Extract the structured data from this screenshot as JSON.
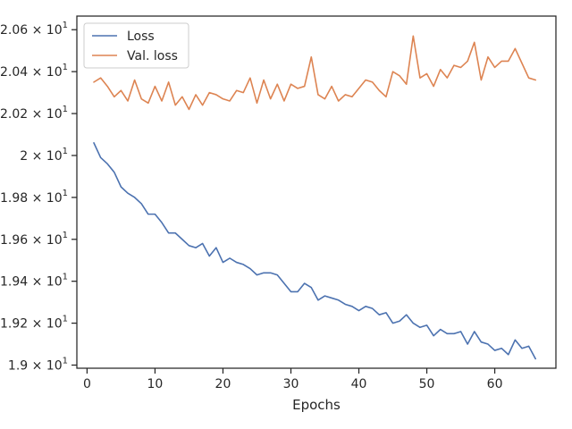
{
  "chart_data": {
    "type": "line",
    "title": "",
    "xlabel": "Epochs",
    "ylabel": "",
    "xlim": [
      -1.5,
      69.0
    ],
    "ylim": [
      18.985,
      20.665
    ],
    "x_ticks": [
      0,
      10,
      20,
      30,
      40,
      50,
      60
    ],
    "x_tick_labels": [
      "0",
      "10",
      "20",
      "30",
      "40",
      "50",
      "60"
    ],
    "y_ticks": [
      {
        "value": 19.0,
        "mantissa": "1.9",
        "times": "× 10",
        "exp": "1"
      },
      {
        "value": 19.2,
        "mantissa": "1.92",
        "times": "× 10",
        "exp": "1"
      },
      {
        "value": 19.4,
        "mantissa": "1.94",
        "times": "× 10",
        "exp": "1"
      },
      {
        "value": 19.6,
        "mantissa": "1.96",
        "times": "× 10",
        "exp": "1"
      },
      {
        "value": 19.8,
        "mantissa": "1.98",
        "times": "× 10",
        "exp": "1"
      },
      {
        "value": 20.0,
        "mantissa": "2",
        "times": "× 10",
        "exp": "1"
      },
      {
        "value": 20.2,
        "mantissa": "2.02",
        "times": "× 10",
        "exp": "1"
      },
      {
        "value": 20.4,
        "mantissa": "2.04",
        "times": "× 10",
        "exp": "1"
      },
      {
        "value": 20.6,
        "mantissa": "2.06",
        "times": "× 10",
        "exp": "1"
      }
    ],
    "grid": false,
    "legend_position": "top-left",
    "series": [
      {
        "name": "Loss",
        "color": "#4c72b0",
        "x": [
          1,
          2,
          3,
          4,
          5,
          6,
          7,
          8,
          9,
          10,
          11,
          12,
          13,
          14,
          15,
          16,
          17,
          18,
          19,
          20,
          21,
          22,
          23,
          24,
          25,
          26,
          27,
          28,
          29,
          30,
          31,
          32,
          33,
          34,
          35,
          36,
          37,
          38,
          39,
          40,
          41,
          42,
          43,
          44,
          45,
          46,
          47,
          48,
          49,
          50,
          51,
          52,
          53,
          54,
          55,
          56,
          57,
          58,
          59,
          60,
          61,
          62,
          63,
          64,
          65,
          66
        ],
        "values": [
          20.06,
          19.99,
          19.96,
          19.92,
          19.85,
          19.82,
          19.8,
          19.77,
          19.72,
          19.72,
          19.68,
          19.63,
          19.63,
          19.6,
          19.57,
          19.56,
          19.58,
          19.52,
          19.56,
          19.49,
          19.51,
          19.49,
          19.48,
          19.46,
          19.43,
          19.44,
          19.44,
          19.43,
          19.39,
          19.35,
          19.35,
          19.39,
          19.37,
          19.31,
          19.33,
          19.32,
          19.31,
          19.29,
          19.28,
          19.26,
          19.28,
          19.27,
          19.24,
          19.25,
          19.2,
          19.21,
          19.24,
          19.2,
          19.18,
          19.19,
          19.14,
          19.17,
          19.15,
          19.15,
          19.16,
          19.1,
          19.16,
          19.11,
          19.1,
          19.07,
          19.08,
          19.05,
          19.12,
          19.08,
          19.09,
          19.03
        ]
      },
      {
        "name": "Val. loss",
        "color": "#dd8452",
        "x": [
          1,
          2,
          3,
          4,
          5,
          6,
          7,
          8,
          9,
          10,
          11,
          12,
          13,
          14,
          15,
          16,
          17,
          18,
          19,
          20,
          21,
          22,
          23,
          24,
          25,
          26,
          27,
          28,
          29,
          30,
          31,
          32,
          33,
          34,
          35,
          36,
          37,
          38,
          39,
          40,
          41,
          42,
          43,
          44,
          45,
          46,
          47,
          48,
          49,
          50,
          51,
          52,
          53,
          54,
          55,
          56,
          57,
          58,
          59,
          60,
          61,
          62,
          63,
          64,
          65,
          66
        ],
        "values": [
          20.35,
          20.37,
          20.33,
          20.28,
          20.31,
          20.26,
          20.36,
          20.27,
          20.25,
          20.33,
          20.26,
          20.35,
          20.24,
          20.28,
          20.22,
          20.29,
          20.24,
          20.3,
          20.29,
          20.27,
          20.26,
          20.31,
          20.3,
          20.37,
          20.25,
          20.36,
          20.27,
          20.34,
          20.26,
          20.34,
          20.32,
          20.33,
          20.47,
          20.29,
          20.27,
          20.33,
          20.26,
          20.29,
          20.28,
          20.32,
          20.36,
          20.35,
          20.31,
          20.28,
          20.4,
          20.38,
          20.34,
          20.57,
          20.37,
          20.39,
          20.33,
          20.41,
          20.37,
          20.43,
          20.42,
          20.45,
          20.54,
          20.36,
          20.47,
          20.42,
          20.45,
          20.45,
          20.51,
          20.44,
          20.37,
          20.36
        ]
      }
    ]
  }
}
